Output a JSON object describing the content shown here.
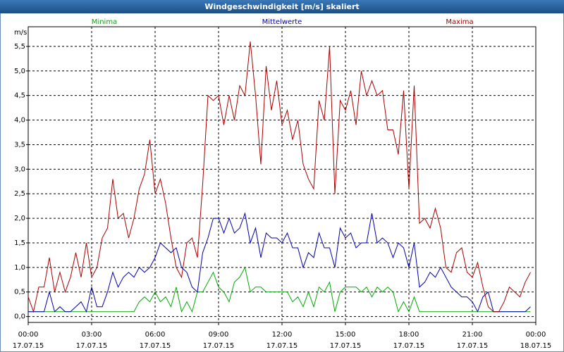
{
  "chart_data": {
    "type": "line",
    "title": "Windgeschwindigkeit [m/s] skaliert",
    "y_unit": "m/s",
    "x": [
      0,
      0.25,
      0.5,
      0.75,
      1,
      1.25,
      1.5,
      1.75,
      2,
      2.25,
      2.5,
      2.75,
      3,
      3.25,
      3.5,
      3.75,
      4,
      4.25,
      4.5,
      4.75,
      5,
      5.25,
      5.5,
      5.75,
      6,
      6.25,
      6.5,
      6.75,
      7,
      7.25,
      7.5,
      7.75,
      8,
      8.25,
      8.5,
      8.75,
      9,
      9.25,
      9.5,
      9.75,
      10,
      10.25,
      10.5,
      10.75,
      11,
      11.25,
      11.5,
      11.75,
      12,
      12.25,
      12.5,
      12.75,
      13,
      13.25,
      13.5,
      13.75,
      14,
      14.25,
      14.5,
      14.75,
      15,
      15.25,
      15.5,
      15.75,
      16,
      16.25,
      16.5,
      16.75,
      17,
      17.25,
      17.5,
      17.75,
      18,
      18.25,
      18.5,
      18.75,
      19,
      19.25,
      19.5,
      19.75,
      20,
      20.25,
      20.5,
      20.75,
      21,
      21.25,
      21.5,
      21.75,
      22,
      22.25,
      22.5,
      22.75,
      23,
      23.25,
      23.5,
      23.75
    ],
    "series": [
      {
        "name": "Minima",
        "color": "#00aa00",
        "values": [
          0.1,
          0.1,
          0.1,
          0.1,
          0.1,
          0.1,
          0.1,
          0.1,
          0.1,
          0.1,
          0.1,
          0.1,
          0.1,
          0.1,
          0.1,
          0.1,
          0.1,
          0.1,
          0.1,
          0.1,
          0.1,
          0.3,
          0.4,
          0.3,
          0.5,
          0.3,
          0.4,
          0.2,
          0.6,
          0.1,
          0.3,
          0.1,
          0.5,
          0.5,
          0.7,
          0.9,
          0.6,
          0.5,
          0.3,
          0.7,
          0.8,
          1.0,
          0.5,
          0.6,
          0.6,
          0.5,
          0.5,
          0.5,
          0.5,
          0.5,
          0.3,
          0.4,
          0.2,
          0.5,
          0.2,
          0.6,
          0.5,
          0.7,
          0.1,
          0.5,
          0.6,
          0.6,
          0.6,
          0.5,
          0.6,
          0.4,
          0.6,
          0.5,
          0.6,
          0.5,
          0.1,
          0.3,
          0.1,
          0.4,
          0.1,
          0.1,
          0.1,
          0.1,
          0.1,
          0.1,
          0.1,
          0.1,
          0.1,
          0.1,
          0.1,
          0.1,
          0.1,
          0.1,
          0.1,
          0.1,
          0.1,
          0.1,
          0.1,
          0.1,
          0.1,
          0.1
        ]
      },
      {
        "name": "Mittelwerte",
        "color": "#0000aa",
        "values": [
          0.1,
          0.1,
          0.1,
          0.1,
          0.5,
          0.1,
          0.2,
          0.1,
          0.1,
          0.2,
          0.3,
          0.1,
          0.6,
          0.2,
          0.2,
          0.5,
          0.9,
          0.6,
          0.8,
          0.9,
          0.8,
          1.0,
          0.9,
          1.0,
          1.2,
          1.5,
          1.4,
          1.3,
          1.4,
          1.0,
          0.9,
          0.6,
          0.5,
          1.3,
          1.6,
          2.0,
          2.0,
          1.7,
          2.0,
          1.7,
          1.8,
          2.1,
          1.5,
          1.8,
          1.2,
          1.7,
          1.6,
          1.6,
          1.5,
          1.7,
          1.4,
          1.4,
          1.0,
          1.3,
          1.2,
          1.7,
          1.4,
          1.4,
          1.0,
          1.8,
          1.6,
          1.7,
          1.4,
          1.5,
          1.5,
          2.1,
          1.5,
          1.6,
          1.5,
          1.2,
          1.5,
          1.4,
          1.0,
          1.5,
          0.6,
          0.7,
          0.9,
          0.8,
          1.0,
          0.8,
          0.6,
          0.5,
          0.4,
          0.4,
          0.3,
          0.1,
          0.4,
          0.5,
          0.1,
          0.1,
          0.1,
          0.1,
          0.1,
          0.1,
          0.1,
          0.2
        ]
      },
      {
        "name": "Maxima",
        "color": "#aa0000",
        "values": [
          0.4,
          0.1,
          0.6,
          0.6,
          1.2,
          0.5,
          0.9,
          0.5,
          0.8,
          1.3,
          0.8,
          1.5,
          0.8,
          1.0,
          1.6,
          1.8,
          2.8,
          2.0,
          2.1,
          1.6,
          2.0,
          2.6,
          2.9,
          3.6,
          2.5,
          2.8,
          2.3,
          1.6,
          1.0,
          0.8,
          1.5,
          1.6,
          1.2,
          2.7,
          4.5,
          4.4,
          4.5,
          3.9,
          4.5,
          4.0,
          4.7,
          4.5,
          5.6,
          4.5,
          3.1,
          5.1,
          4.2,
          4.8,
          3.9,
          4.2,
          3.6,
          4.0,
          3.1,
          2.8,
          2.6,
          4.4,
          4.0,
          5.5,
          2.5,
          4.4,
          4.2,
          4.6,
          3.9,
          5.0,
          4.5,
          4.8,
          4.5,
          4.6,
          3.8,
          3.8,
          3.3,
          4.6,
          2.6,
          4.7,
          1.9,
          2.0,
          1.8,
          2.2,
          1.8,
          1.0,
          0.9,
          1.3,
          1.4,
          0.9,
          0.8,
          1.1,
          0.6,
          0.2,
          0.1,
          0.1,
          0.3,
          0.6,
          0.5,
          0.4,
          0.7,
          0.9
        ]
      }
    ],
    "xlim": [
      0,
      24
    ],
    "xticks": [
      {
        "value": 0,
        "label": "00:00",
        "date": "17.07.15"
      },
      {
        "value": 3,
        "label": "03:00",
        "date": "17.07.15"
      },
      {
        "value": 6,
        "label": "06:00",
        "date": "17.07.15"
      },
      {
        "value": 9,
        "label": "09:00",
        "date": "17.07.15"
      },
      {
        "value": 12,
        "label": "12:00",
        "date": "17.07.15"
      },
      {
        "value": 15,
        "label": "15:00",
        "date": "17.07.15"
      },
      {
        "value": 18,
        "label": "18:00",
        "date": "17.07.15"
      },
      {
        "value": 21,
        "label": "21:00",
        "date": "17.07.15"
      },
      {
        "value": 24,
        "label": "00:00",
        "date": "18.07.15"
      }
    ],
    "ylim": [
      -0.12,
      5.9
    ],
    "yticks": [
      {
        "value": 0,
        "label": "0,0"
      },
      {
        "value": 0.5,
        "label": "0,5"
      },
      {
        "value": 1,
        "label": "1,0"
      },
      {
        "value": 1.5,
        "label": "1,5"
      },
      {
        "value": 2,
        "label": "2,0"
      },
      {
        "value": 2.5,
        "label": "2,5"
      },
      {
        "value": 3,
        "label": "3,0"
      },
      {
        "value": 3.5,
        "label": "3,5"
      },
      {
        "value": 4,
        "label": "4,0"
      },
      {
        "value": 4.5,
        "label": "4,5"
      },
      {
        "value": 5,
        "label": "5,0"
      },
      {
        "value": 5.5,
        "label": "5,5"
      }
    ],
    "grid": true
  }
}
